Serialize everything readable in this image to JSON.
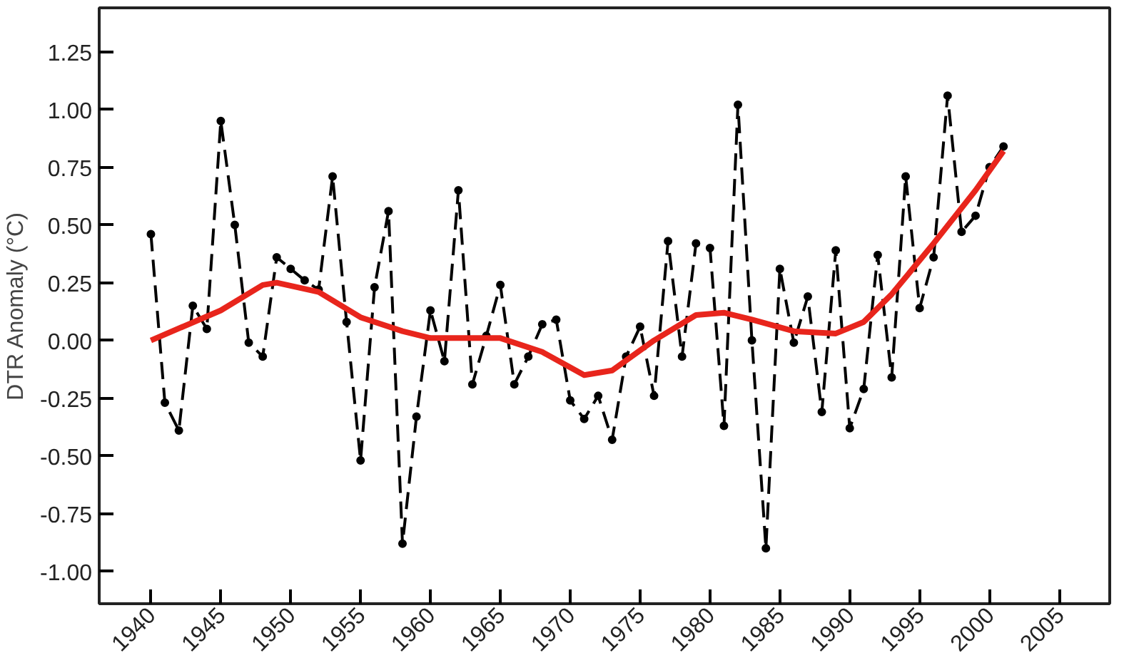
{
  "chart_data": {
    "type": "line",
    "ylabel": "DTR Anomaly (°C)",
    "xlim": [
      1936.3,
      2008.6
    ],
    "ylim": [
      -1.14,
      1.44
    ],
    "xticks": [
      1940,
      1945,
      1950,
      1955,
      1960,
      1965,
      1970,
      1975,
      1980,
      1985,
      1990,
      1995,
      2000,
      2005
    ],
    "yticks": [
      {
        "value": 1.25,
        "label": "1.25"
      },
      {
        "value": 1,
        "label": "1.00"
      },
      {
        "value": 0.75,
        "label": "0.75"
      },
      {
        "value": 0.5,
        "label": "0.50"
      },
      {
        "value": 0.25,
        "label": "0.25"
      },
      {
        "value": 0,
        "label": "0.00"
      },
      {
        "value": -0.25,
        "label": "-0.25"
      },
      {
        "value": -0.5,
        "label": "-0.50"
      },
      {
        "value": -0.75,
        "label": "-0.75"
      },
      {
        "value": -1,
        "label": "-1.00"
      }
    ],
    "grid": false,
    "series": [
      {
        "color": "#000000",
        "line_style": "dashed",
        "marker": "circle",
        "x": [
          1940,
          1941,
          1942,
          1943,
          1944,
          1945,
          1946,
          1947,
          1948,
          1949,
          1950,
          1951,
          1952,
          1953,
          1954,
          1955,
          1956,
          1957,
          1958,
          1959,
          1960,
          1961,
          1962,
          1963,
          1964,
          1965,
          1966,
          1967,
          1968,
          1969,
          1970,
          1971,
          1972,
          1973,
          1974,
          1975,
          1976,
          1977,
          1978,
          1979,
          1980,
          1981,
          1982,
          1983,
          1984,
          1985,
          1986,
          1987,
          1988,
          1989,
          1990,
          1991,
          1992,
          1993,
          1994,
          1995,
          1996,
          1997,
          1998,
          1999,
          2000,
          2001
        ],
        "values": [
          0.46,
          -0.27,
          -0.39,
          0.15,
          0.05,
          0.95,
          0.5,
          -0.01,
          -0.07,
          0.36,
          0.31,
          0.26,
          0.22,
          0.71,
          0.08,
          -0.52,
          0.23,
          0.56,
          -0.88,
          -0.33,
          0.13,
          -0.09,
          0.65,
          -0.19,
          0.02,
          0.24,
          -0.19,
          -0.07,
          0.07,
          0.09,
          -0.26,
          -0.34,
          -0.24,
          -0.43,
          -0.07,
          0.06,
          -0.24,
          0.43,
          -0.07,
          0.42,
          0.4,
          -0.37,
          1.02,
          0.0,
          -0.9,
          0.31,
          -0.01,
          0.19,
          -0.31,
          0.39,
          -0.38,
          -0.21,
          0.37,
          -0.16,
          0.71,
          0.14,
          0.36,
          1.06,
          0.47,
          0.54,
          0.75,
          0.84
        ]
      },
      {
        "color": "#e8251c",
        "line_style": "solid",
        "marker": "none",
        "x": [
          1940,
          1945,
          1948,
          1949,
          1952,
          1955,
          1958,
          1960,
          1965,
          1968,
          1971,
          1973,
          1976,
          1979,
          1981,
          1983,
          1986,
          1989,
          1991,
          1993,
          1996,
          1999,
          2001
        ],
        "values": [
          0.0,
          0.13,
          0.24,
          0.25,
          0.21,
          0.1,
          0.04,
          0.01,
          0.01,
          -0.05,
          -0.15,
          -0.13,
          0.0,
          0.11,
          0.12,
          0.09,
          0.04,
          0.03,
          0.08,
          0.2,
          0.42,
          0.65,
          0.82
        ]
      }
    ]
  }
}
